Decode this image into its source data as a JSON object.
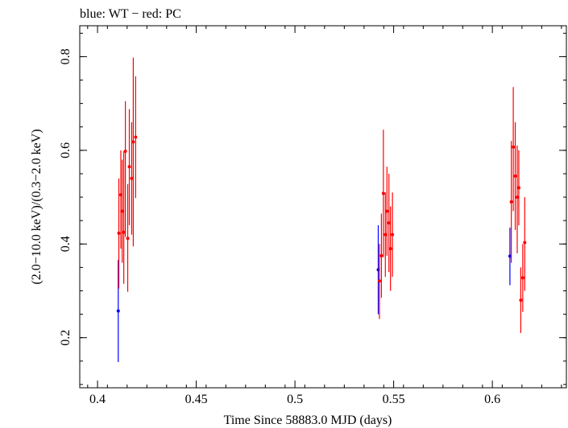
{
  "chart_data": {
    "type": "scatter",
    "title": "blue: WT − red: PC",
    "xlabel": "Time Since 58883.0 MJD (days)",
    "ylabel": "(2.0−10.0 keV)/(0.3−2.0 keV)",
    "xlim": [
      0.391,
      0.6375
    ],
    "ylim": [
      0.093,
      0.866
    ],
    "x_ticks": [
      0.4,
      0.45,
      0.5,
      0.55,
      0.6
    ],
    "x_tick_labels": [
      "0.4",
      "0.45",
      "0.5",
      "0.55",
      "0.6"
    ],
    "y_ticks": [
      0.2,
      0.4,
      0.6,
      0.8
    ],
    "y_tick_labels": [
      "0.2",
      "0.4",
      "0.6",
      "0.8"
    ],
    "grid": false,
    "series": [
      {
        "name": "WT",
        "color": "#0000ff",
        "points": [
          {
            "x": 0.4105,
            "y": 0.257,
            "lo": 0.148,
            "hi": 0.366
          },
          {
            "x": 0.5422,
            "y": 0.345,
            "lo": 0.25,
            "hi": 0.44
          },
          {
            "x": 0.6089,
            "y": 0.374,
            "lo": 0.312,
            "hi": 0.435
          }
        ]
      },
      {
        "name": "PC",
        "color": "#ff0000",
        "points": [
          {
            "x": 0.4108,
            "y": 0.423,
            "lo": 0.305,
            "hi": 0.54
          },
          {
            "x": 0.4118,
            "y": 0.505,
            "lo": 0.39,
            "hi": 0.6
          },
          {
            "x": 0.4125,
            "y": 0.47,
            "lo": 0.36,
            "hi": 0.58
          },
          {
            "x": 0.4133,
            "y": 0.425,
            "lo": 0.315,
            "hi": 0.598
          },
          {
            "x": 0.4141,
            "y": 0.598,
            "lo": 0.415,
            "hi": 0.705
          },
          {
            "x": 0.4153,
            "y": 0.412,
            "lo": 0.298,
            "hi": 0.528
          },
          {
            "x": 0.4161,
            "y": 0.565,
            "lo": 0.44,
            "hi": 0.688
          },
          {
            "x": 0.4173,
            "y": 0.54,
            "lo": 0.42,
            "hi": 0.66
          },
          {
            "x": 0.4181,
            "y": 0.618,
            "lo": 0.395,
            "hi": 0.798
          },
          {
            "x": 0.4193,
            "y": 0.628,
            "lo": 0.498,
            "hi": 0.758
          },
          {
            "x": 0.5428,
            "y": 0.321,
            "lo": 0.24,
            "hi": 0.4
          },
          {
            "x": 0.5438,
            "y": 0.375,
            "lo": 0.285,
            "hi": 0.465
          },
          {
            "x": 0.5448,
            "y": 0.508,
            "lo": 0.372,
            "hi": 0.644
          },
          {
            "x": 0.5458,
            "y": 0.42,
            "lo": 0.33,
            "hi": 0.51
          },
          {
            "x": 0.5466,
            "y": 0.47,
            "lo": 0.375,
            "hi": 0.565
          },
          {
            "x": 0.5476,
            "y": 0.445,
            "lo": 0.34,
            "hi": 0.55
          },
          {
            "x": 0.5484,
            "y": 0.39,
            "lo": 0.3,
            "hi": 0.48
          },
          {
            "x": 0.5494,
            "y": 0.42,
            "lo": 0.33,
            "hi": 0.51
          },
          {
            "x": 0.6096,
            "y": 0.49,
            "lo": 0.36,
            "hi": 0.62
          },
          {
            "x": 0.6106,
            "y": 0.607,
            "lo": 0.47,
            "hi": 0.735
          },
          {
            "x": 0.6116,
            "y": 0.545,
            "lo": 0.43,
            "hi": 0.66
          },
          {
            "x": 0.6126,
            "y": 0.5,
            "lo": 0.38,
            "hi": 0.61
          },
          {
            "x": 0.6134,
            "y": 0.52,
            "lo": 0.44,
            "hi": 0.6
          },
          {
            "x": 0.6144,
            "y": 0.28,
            "lo": 0.21,
            "hi": 0.35
          },
          {
            "x": 0.6154,
            "y": 0.328,
            "lo": 0.255,
            "hi": 0.4
          },
          {
            "x": 0.6164,
            "y": 0.403,
            "lo": 0.3,
            "hi": 0.5
          }
        ]
      }
    ]
  }
}
